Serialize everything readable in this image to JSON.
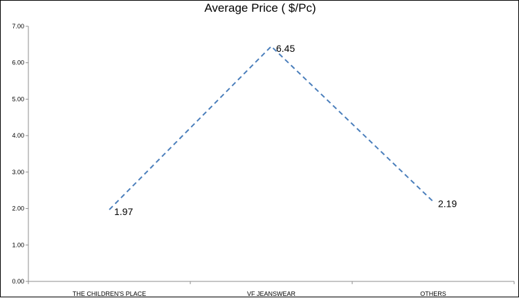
{
  "chart_data": {
    "type": "line",
    "title": "Average Price ( $/Pc)",
    "xlabel": "",
    "ylabel": "",
    "categories": [
      "THE CHILDREN'S PLACE",
      "VF JEANSWEAR",
      "OTHERS"
    ],
    "series": [
      {
        "values": [
          1.97,
          6.45,
          2.19
        ],
        "data_labels": [
          "1.97",
          "6.45",
          "2.19"
        ],
        "color": "#4a7ebb",
        "line_style": "dashed"
      }
    ],
    "ylim": [
      0,
      7
    ],
    "y_ticks": [
      0,
      1,
      2,
      3,
      4,
      5,
      6,
      7
    ],
    "y_tick_labels": [
      "0.00",
      "1.00",
      "2.00",
      "3.00",
      "4.00",
      "5.00",
      "6.00",
      "7.00"
    ],
    "grid": false,
    "legend": "none"
  }
}
